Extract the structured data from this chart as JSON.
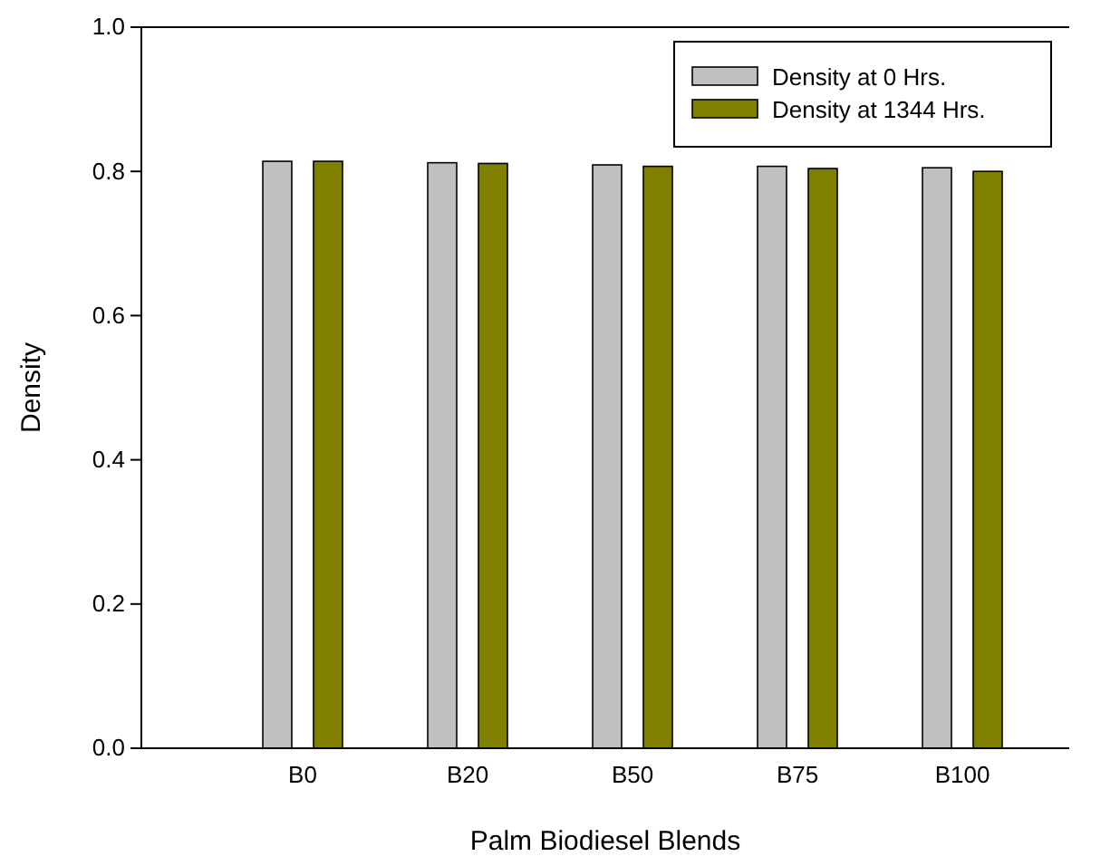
{
  "chart_data": {
    "type": "bar",
    "xlabel": "Palm Biodiesel Blends",
    "ylabel": "Density",
    "categories": [
      "B0",
      "B20",
      "B50",
      "B75",
      "B100"
    ],
    "series": [
      {
        "name": "Density at 0 Hrs.",
        "color": "#c0c0c0",
        "values": [
          0.814,
          0.812,
          0.809,
          0.807,
          0.805
        ]
      },
      {
        "name": "Density at 1344 Hrs.",
        "color": "#808000",
        "values": [
          0.814,
          0.811,
          0.807,
          0.804,
          0.8
        ]
      }
    ],
    "ylim": [
      0,
      1
    ],
    "yticks": [
      {
        "value": 0,
        "label": "0.0"
      },
      {
        "value": 0.2,
        "label": "0.2"
      },
      {
        "value": 0.4,
        "label": "0.4"
      },
      {
        "value": 0.6,
        "label": "0.6"
      },
      {
        "value": 0.8,
        "label": "0.8"
      },
      {
        "value": 1,
        "label": "1.0"
      }
    ],
    "grid": false,
    "legend": "top right"
  }
}
